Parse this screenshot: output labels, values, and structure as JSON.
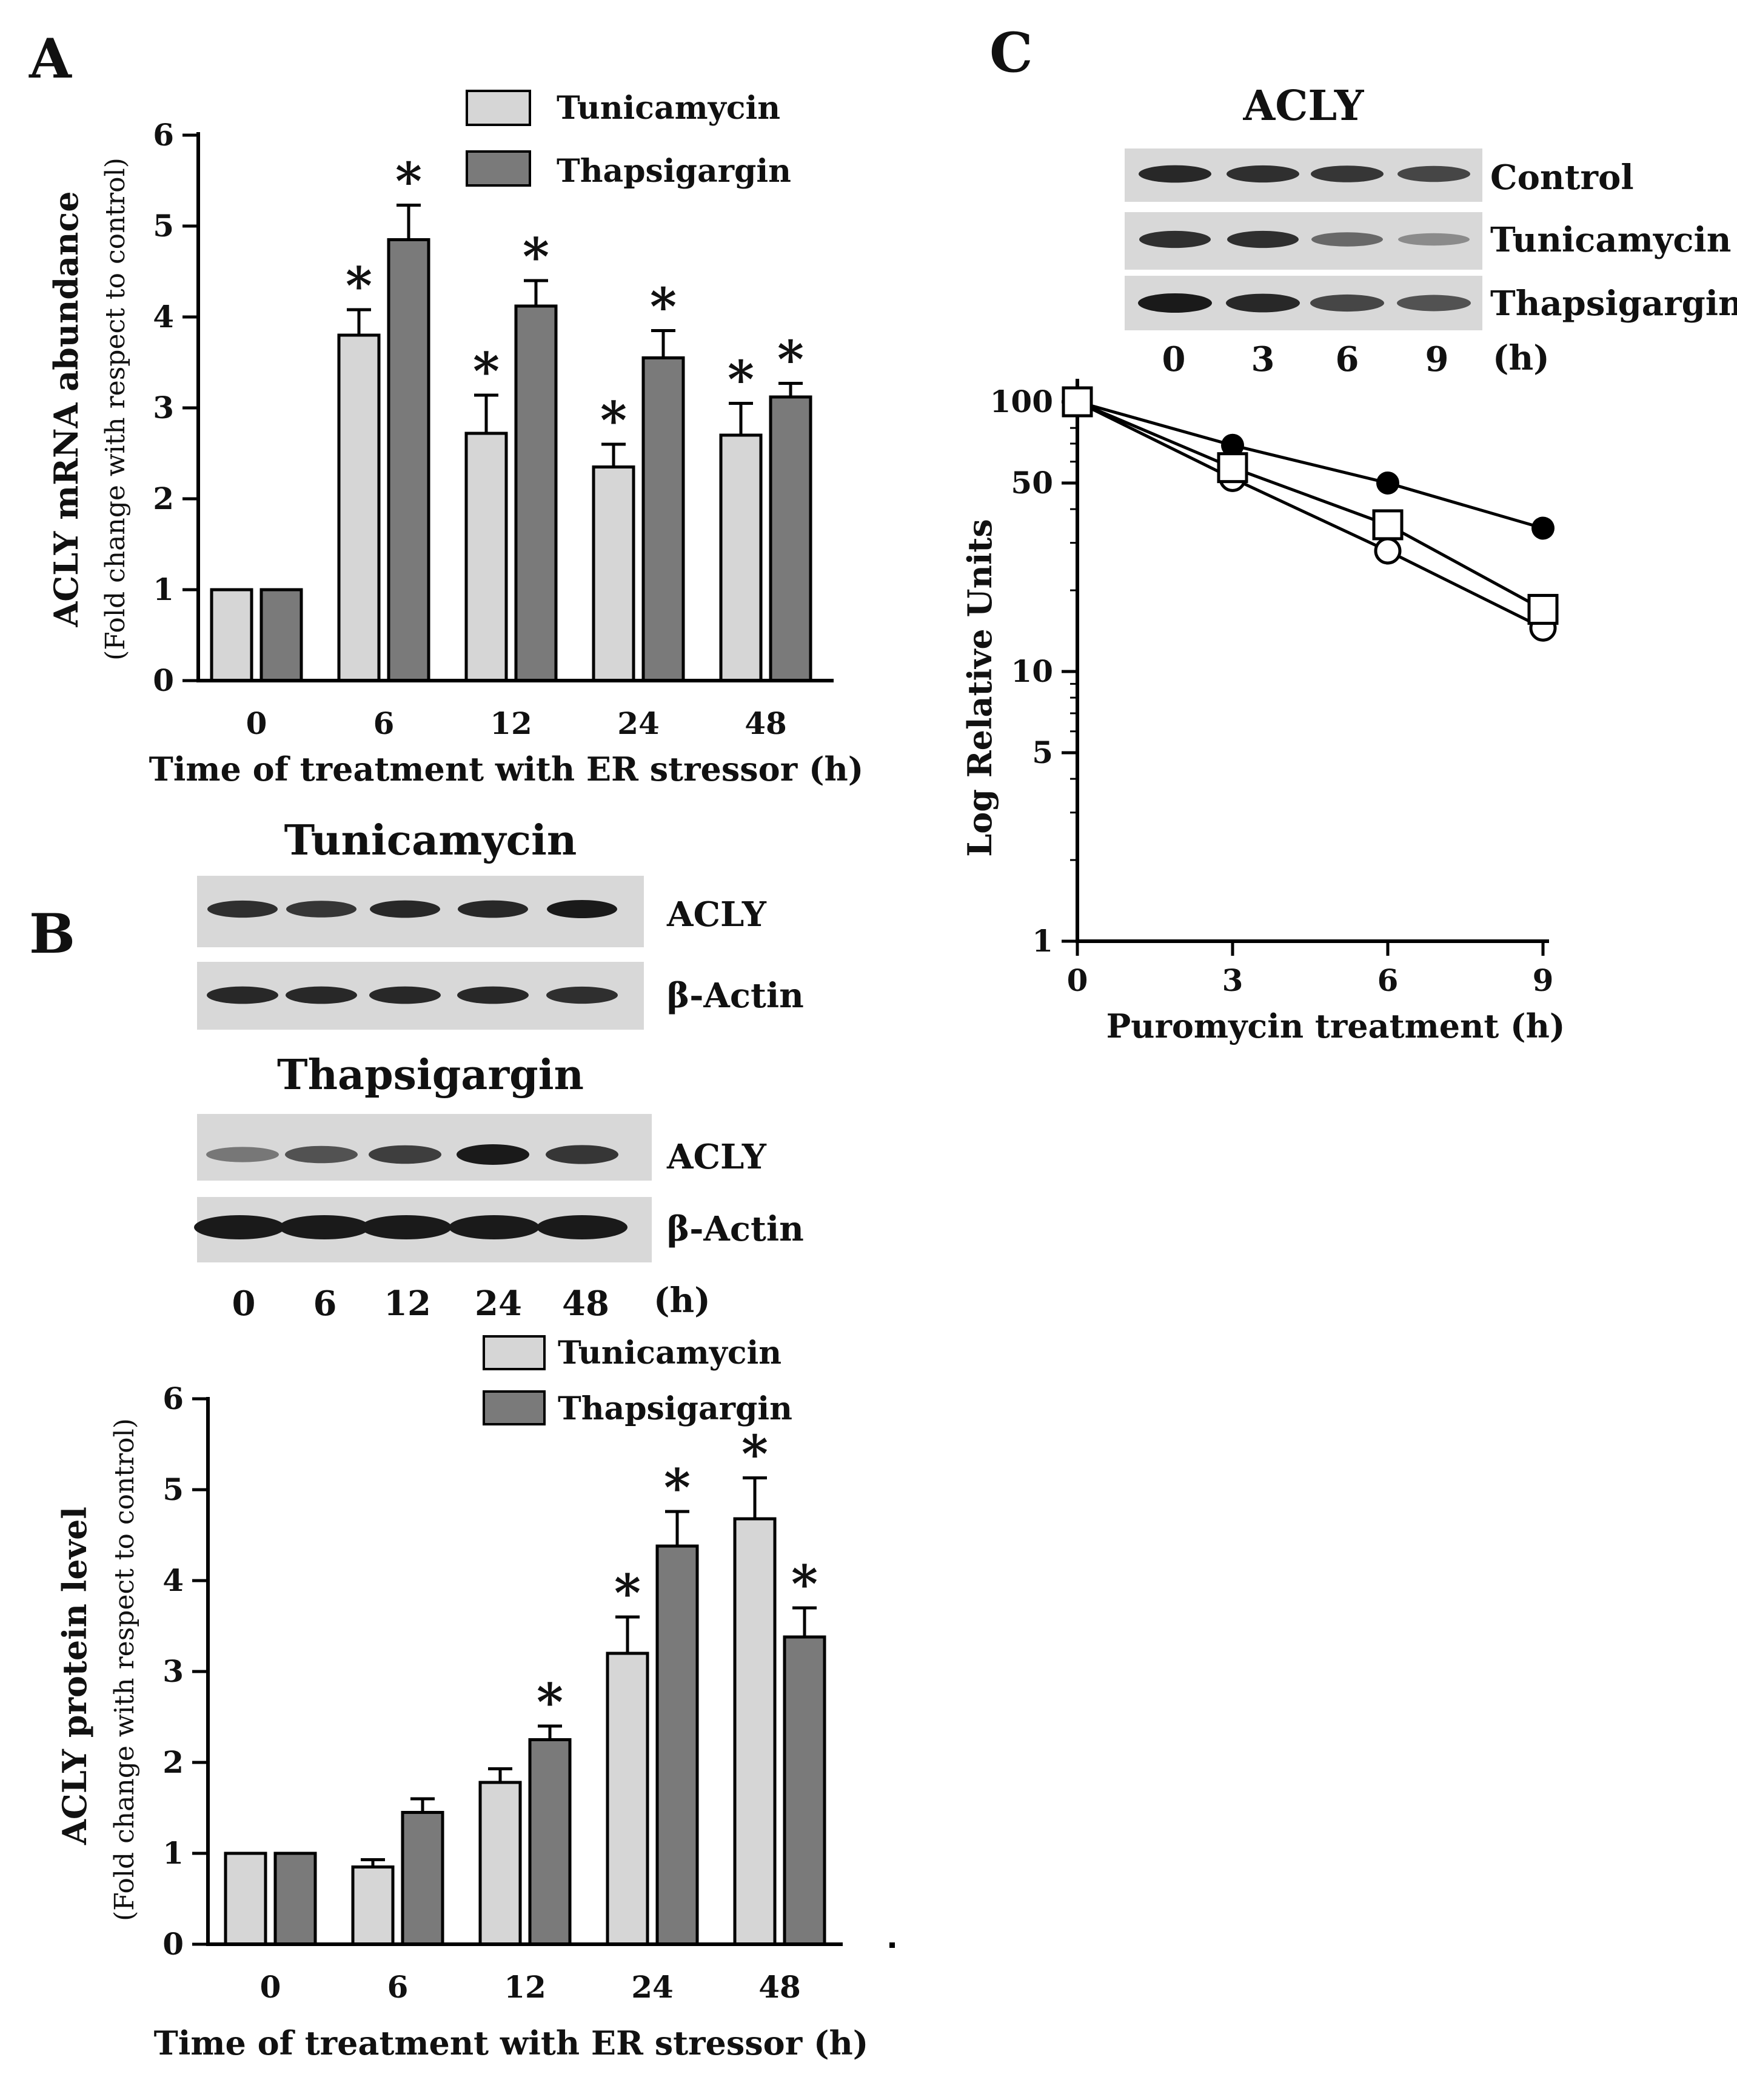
{
  "panels": {
    "a": "A",
    "b": "B",
    "c": "C"
  },
  "colors": {
    "tunicamycin": "#d6d6d6",
    "thapsigargin": "#7a7a7a",
    "blot_bg": "#d8d8d8",
    "band": "#1a1a1a"
  },
  "chart_data": [
    {
      "id": "A",
      "type": "bar",
      "categories": [
        "0",
        "6",
        "12",
        "24",
        "48"
      ],
      "series": [
        {
          "name": "Tunicamycin",
          "values": [
            1,
            3.8,
            2.72,
            2.35,
            2.7
          ],
          "errors": [
            0,
            0.28,
            0.42,
            0.25,
            0.35
          ],
          "significant": [
            false,
            true,
            true,
            true,
            true
          ]
        },
        {
          "name": "Thapsigargin",
          "values": [
            1,
            4.85,
            4.12,
            3.55,
            3.12
          ],
          "errors": [
            0,
            0.38,
            0.28,
            0.3,
            0.15
          ],
          "significant": [
            false,
            true,
            true,
            true,
            true
          ]
        }
      ],
      "title": "",
      "xlabel": "Time of treatment with ER stressor (h)",
      "ylabel": "ACLY mRNA abundance",
      "ylabel_sub": "(Fold change with respect to control)",
      "ylim": [
        0,
        6
      ],
      "yticks": [
        "0",
        "1",
        "2",
        "3",
        "4",
        "5",
        "6"
      ],
      "legend": "top-right",
      "sig_marker": "*"
    },
    {
      "id": "B",
      "type": "bar",
      "categories": [
        "0",
        "6",
        "12",
        "24",
        "48"
      ],
      "series": [
        {
          "name": "Tunicamycin",
          "values": [
            1,
            0.85,
            1.78,
            3.2,
            4.68
          ],
          "errors": [
            0,
            0.08,
            0.15,
            0.4,
            0.45
          ],
          "significant": [
            false,
            false,
            false,
            true,
            true
          ]
        },
        {
          "name": "Thapsigargin",
          "values": [
            1,
            1.45,
            2.25,
            4.38,
            3.38
          ],
          "errors": [
            0,
            0.15,
            0.15,
            0.38,
            0.32
          ],
          "significant": [
            false,
            false,
            true,
            true,
            true
          ]
        }
      ],
      "title": "",
      "xlabel": "Time of treatment with ER stressor (h)",
      "ylabel": "ACLY protein level",
      "ylabel_sub": "(Fold change with respect to control)",
      "ylim": [
        0,
        6
      ],
      "yticks": [
        "0",
        "1",
        "2",
        "3",
        "4",
        "5",
        "6"
      ],
      "legend": "top-right",
      "sig_marker": "*"
    },
    {
      "id": "C",
      "type": "line",
      "yscale": "log",
      "x": [
        0,
        3,
        6,
        9
      ],
      "xticks": [
        "0",
        "3",
        "6",
        "9"
      ],
      "series": [
        {
          "name": "Control",
          "marker": "filled-circle",
          "values": [
            100,
            69,
            50,
            34
          ]
        },
        {
          "name": "Tunicamycin",
          "marker": "open-circle",
          "values": [
            100,
            52,
            28,
            14.5
          ]
        },
        {
          "name": "Thapsigargin",
          "marker": "open-square",
          "values": [
            100,
            57,
            35,
            17
          ]
        }
      ],
      "xlabel": "Puromycin treatment (h)",
      "ylabel": "Log Relative Units",
      "ylim": [
        1,
        100
      ],
      "yticks": [
        {
          "value": 1,
          "label": "1"
        },
        {
          "value": 5,
          "label": "5"
        },
        {
          "value": 10,
          "label": "10"
        },
        {
          "value": 50,
          "label": "50"
        },
        {
          "value": 100,
          "label": "100"
        }
      ]
    }
  ],
  "blots_b": {
    "tunicamycin_title": "Tunicamycin",
    "thapsigargin_title": "Thapsigargin",
    "acly_label": "ACLY",
    "actin_label": "β-Actin",
    "lanes": [
      "0",
      "6",
      "12",
      "24",
      "48"
    ],
    "unit": "(h)",
    "intensity": {
      "tunicamycin_acly": [
        0.85,
        0.8,
        0.9,
        0.9,
        1.0
      ],
      "tunicamycin_actin": [
        0.9,
        0.9,
        0.9,
        0.9,
        0.85
      ],
      "thapsigargin_acly": [
        0.35,
        0.6,
        0.75,
        1.0,
        0.8
      ],
      "thapsigargin_actin": [
        1.0,
        1.0,
        1.0,
        1.0,
        1.0
      ]
    }
  },
  "blots_c": {
    "title": "ACLY",
    "rows": [
      "Control",
      "Tunicamycin",
      "Thapsigargin"
    ],
    "lanes": [
      "0",
      "3",
      "6",
      "9"
    ],
    "unit": "(h)",
    "intensity": {
      "control": [
        0.9,
        0.85,
        0.8,
        0.7
      ],
      "tunicamycin": [
        0.85,
        0.85,
        0.45,
        0.2
      ],
      "thapsigargin": [
        1.0,
        0.9,
        0.7,
        0.6
      ]
    }
  }
}
